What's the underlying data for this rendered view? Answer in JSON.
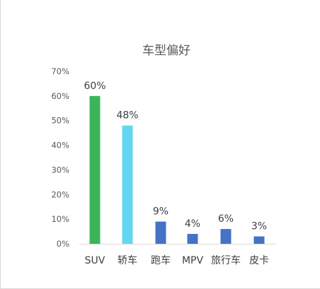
{
  "chart_data": {
    "type": "bar",
    "title": "车型偏好",
    "categories": [
      "SUV",
      "轿车",
      "跑车",
      "MPV",
      "旅行车",
      "皮卡"
    ],
    "values": [
      60,
      48,
      9,
      4,
      6,
      3
    ],
    "data_labels": [
      "60%",
      "48%",
      "9%",
      "4%",
      "6%",
      "3%"
    ],
    "bar_colors": [
      "#3cb55a",
      "#63d7f2",
      "#4472c4",
      "#4472c4",
      "#4472c4",
      "#4472c4"
    ],
    "ylim": [
      0,
      70
    ],
    "yticks": [
      0,
      10,
      20,
      30,
      40,
      50,
      60,
      70
    ],
    "ytick_labels": [
      "0%",
      "10%",
      "20%",
      "30%",
      "40%",
      "50%",
      "60%",
      "70%"
    ],
    "xlabel": "",
    "ylabel": "",
    "grid": false,
    "legend": "none"
  }
}
